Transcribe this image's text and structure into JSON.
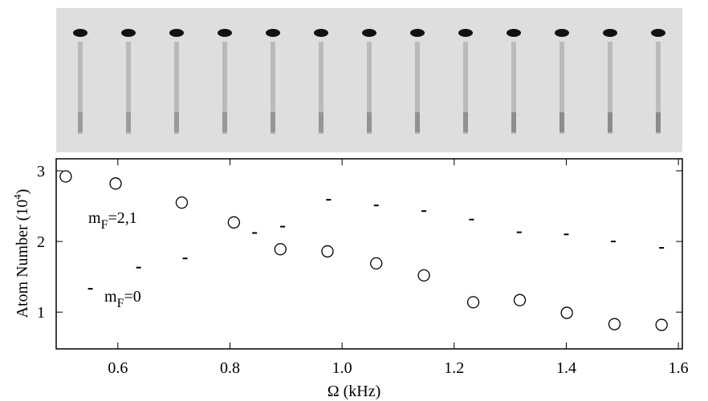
{
  "chart_data": {
    "type": "scatter",
    "x_label": "Ω (kHz)",
    "y_label": {
      "text": "Atom Number (10",
      "sup": "4",
      "end": ")"
    },
    "xlim": [
      0.49,
      1.607
    ],
    "ylim": [
      0.48,
      3.17
    ],
    "xticks": [
      0.6,
      0.8,
      {
        "value": 1,
        "label": "1.0"
      },
      1.2,
      1.4,
      1.6
    ],
    "yticks": [
      1,
      2,
      3
    ],
    "series": [
      {
        "marker": "circle",
        "color": "#000000",
        "x": [
          0.507,
          0.596,
          0.714,
          0.807,
          0.89,
          0.974,
          1.061,
          1.146,
          1.234,
          1.317,
          1.401,
          1.486,
          1.57
        ],
        "values": [
          2.92,
          2.82,
          2.55,
          2.27,
          1.89,
          1.86,
          1.69,
          1.52,
          1.14,
          1.17,
          0.99,
          0.83,
          0.82
        ]
      },
      {
        "marker": "dash",
        "color": "#000000",
        "x": [
          0.844,
          0.894,
          0.976,
          1.061,
          1.146,
          1.231,
          1.316,
          1.4,
          1.484,
          1.57
        ],
        "values": [
          2.12,
          2.21,
          2.59,
          2.51,
          2.43,
          2.31,
          2.13,
          2.1,
          2.0,
          1.91
        ]
      },
      {
        "marker": "dash",
        "color": "#000000",
        "x": [
          0.551,
          0.637,
          0.72
        ],
        "values": [
          1.33,
          1.63,
          1.76
        ]
      }
    ],
    "annotations": [
      {
        "text": "m",
        "sub": "F",
        "end": "=2,1"
      },
      {
        "text": "m",
        "sub": "F",
        "end": "=0"
      }
    ]
  }
}
